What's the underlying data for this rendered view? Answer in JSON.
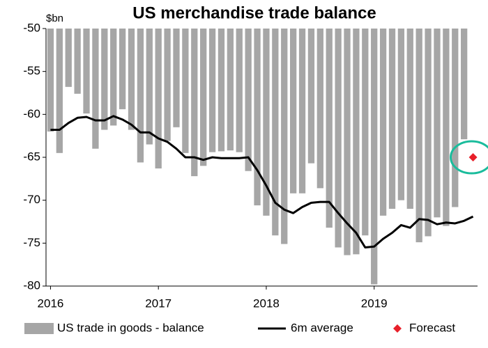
{
  "chart_data": {
    "type": "bar",
    "title": "US merchandise trade balance",
    "y_label": "$bn",
    "categories": [
      "2016",
      null,
      null,
      null,
      null,
      null,
      null,
      null,
      null,
      null,
      null,
      null,
      "2017",
      null,
      null,
      null,
      null,
      null,
      null,
      null,
      null,
      null,
      null,
      null,
      "2018",
      null,
      null,
      null,
      null,
      null,
      null,
      null,
      null,
      null,
      null,
      null,
      "2019",
      null,
      null,
      null,
      null,
      null,
      null,
      null,
      null,
      null,
      null,
      null
    ],
    "series": [
      {
        "name": "US trade in goods - balance",
        "type": "bar",
        "color": "#a6a6a6",
        "values": [
          -62,
          -64.5,
          -56.8,
          -57.6,
          -59.9,
          -64,
          -61.8,
          -61.3,
          -59.4,
          -61.8,
          -65.6,
          -63.5,
          -66.3,
          -63.1,
          -61.5,
          -64.5,
          -67.2,
          -66,
          -64.4,
          -64.3,
          -64.2,
          -64.4,
          -66.6,
          -70.6,
          -71.8,
          -74.1,
          -75.1,
          -69.2,
          -69.2,
          -65.7,
          -68.6,
          -73.2,
          -75.5,
          -76.4,
          -76.3,
          -74.1,
          -79.8,
          -71.8,
          -71,
          -70,
          -71,
          -74.9,
          -74.2,
          -72,
          -73,
          -70.8,
          -62.9,
          null
        ]
      },
      {
        "name": "6m average",
        "type": "line",
        "color": "#000000",
        "values": [
          -61.8,
          -61.8,
          -61,
          -60.4,
          -60.3,
          -60.7,
          -60.7,
          -60.2,
          -60.6,
          -61.2,
          -62.1,
          -62.1,
          -62.8,
          -63.2,
          -64,
          -65,
          -65,
          -65.3,
          -65,
          -65.1,
          -65.1,
          -65.1,
          -65,
          -66.5,
          -68.3,
          -70.3,
          -71.1,
          -71.5,
          -70.8,
          -70.3,
          -70.2,
          -70.2,
          -71.5,
          -72.7,
          -73.8,
          -75.5,
          -75.4,
          -74.5,
          -73.8,
          -72.9,
          -73.2,
          -72.2,
          -72.3,
          -72.8,
          -72.6,
          -72.7,
          -72.4,
          -71.9
        ]
      },
      {
        "name": "Forecast",
        "type": "scatter",
        "color": "#e8202a",
        "values": [
          null,
          null,
          null,
          null,
          null,
          null,
          null,
          null,
          null,
          null,
          null,
          null,
          null,
          null,
          null,
          null,
          null,
          null,
          null,
          null,
          null,
          null,
          null,
          null,
          null,
          null,
          null,
          null,
          null,
          null,
          null,
          null,
          null,
          null,
          null,
          null,
          null,
          null,
          null,
          null,
          null,
          null,
          null,
          null,
          null,
          null,
          null,
          -65
        ]
      }
    ],
    "ylim": [
      -80,
      -50
    ],
    "yticks": [
      -80,
      -75,
      -70,
      -65,
      -60,
      -55,
      -50
    ],
    "legend": "bottom",
    "highlight_color": "#1abc9c"
  }
}
